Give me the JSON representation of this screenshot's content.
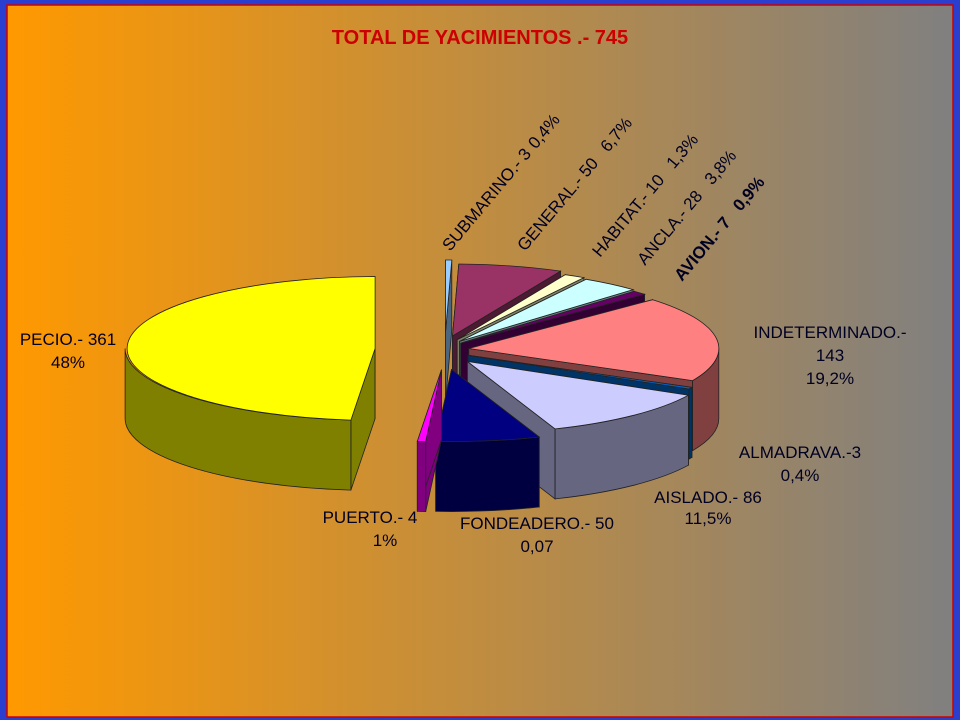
{
  "chart_data": {
    "type": "pie3d",
    "title": "TOTAL DE YACIMIENTOS .-  745",
    "categories": [
      "SUBMARINO.- 3",
      "GENERAL.- 50",
      "HABITAT.- 10",
      "ANCLA.- 28",
      "AVION.- 7",
      "INDETERMINADO.-",
      "ALMADRAVA.-3",
      "AISLADO.- 86",
      "FONDEADERO.- 50",
      "PUERTO.- 4",
      "PECIO.- 361"
    ],
    "values": [
      3,
      50,
      10,
      28,
      7,
      143,
      3,
      86,
      50,
      4,
      361
    ],
    "value_labels": [
      null,
      null,
      null,
      null,
      null,
      "143",
      null,
      null,
      null,
      null,
      null
    ],
    "percent_labels": [
      "0,4%",
      "6,7%",
      "1,3%",
      "3,8%",
      "0,9%",
      "19,2%",
      "0,4%",
      "11,5%",
      "0,07",
      "1%",
      "48%"
    ],
    "colors": [
      "#99ccff",
      "#993366",
      "#ffffcc",
      "#ccffff",
      "#660066",
      "#ff8080",
      "#0066cc",
      "#ccccff",
      "#000080",
      "#ff00ff",
      "#ffff00"
    ]
  }
}
